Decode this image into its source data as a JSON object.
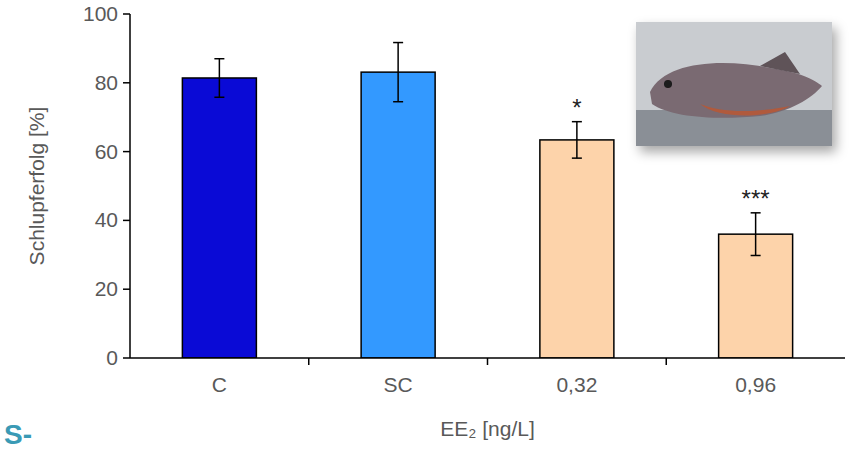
{
  "chart_data": {
    "type": "bar",
    "x_label": "EE₂ [ng/L]",
    "y_label": "Schlupferfolg [%]",
    "categories": [
      "C",
      "SC",
      "0,32",
      "0,96"
    ],
    "values": [
      81.4,
      83.1,
      63.4,
      36.0
    ],
    "errors": [
      5.6,
      8.6,
      5.3,
      6.2
    ],
    "colors": [
      "#0a0ad6",
      "#3399ff",
      "#fdd3aa",
      "#fdd3aa"
    ],
    "significance": [
      null,
      null,
      "*",
      "***"
    ],
    "annotations": [
      "S-"
    ],
    "ylim": [
      0,
      100
    ],
    "yticks": [
      0,
      20,
      40,
      60,
      80,
      100
    ],
    "grid": false
  }
}
